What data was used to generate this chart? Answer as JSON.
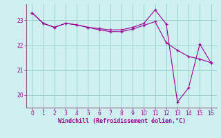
{
  "xlabel": "Windchill (Refroidissement éolien,°C)",
  "bg_color": "#cff0f0",
  "line_color": "#990099",
  "grid_color": "#99cccc",
  "axis_color": "#886688",
  "x_ticks": [
    0,
    1,
    2,
    3,
    4,
    5,
    6,
    7,
    8,
    9,
    10,
    11,
    12,
    13,
    14,
    15,
    16
  ],
  "y_ticks": [
    20,
    21,
    22,
    23
  ],
  "ylim": [
    19.5,
    23.65
  ],
  "xlim": [
    -0.5,
    16.5
  ],
  "line1_x": [
    0,
    1,
    2,
    3,
    4,
    5,
    6,
    7,
    8,
    9,
    10,
    11,
    12,
    13,
    14,
    15,
    16
  ],
  "line1_y": [
    23.3,
    22.88,
    22.72,
    22.88,
    22.82,
    22.72,
    22.67,
    22.62,
    22.62,
    22.72,
    22.88,
    23.42,
    22.85,
    19.72,
    20.3,
    22.05,
    21.3
  ],
  "line2_x": [
    0,
    1,
    2,
    3,
    4,
    5,
    6,
    7,
    8,
    9,
    10,
    11,
    12,
    13,
    14,
    15,
    16
  ],
  "line2_y": [
    23.3,
    22.88,
    22.72,
    22.88,
    22.82,
    22.72,
    22.62,
    22.55,
    22.55,
    22.65,
    22.8,
    22.95,
    22.1,
    21.8,
    21.55,
    21.45,
    21.3
  ]
}
